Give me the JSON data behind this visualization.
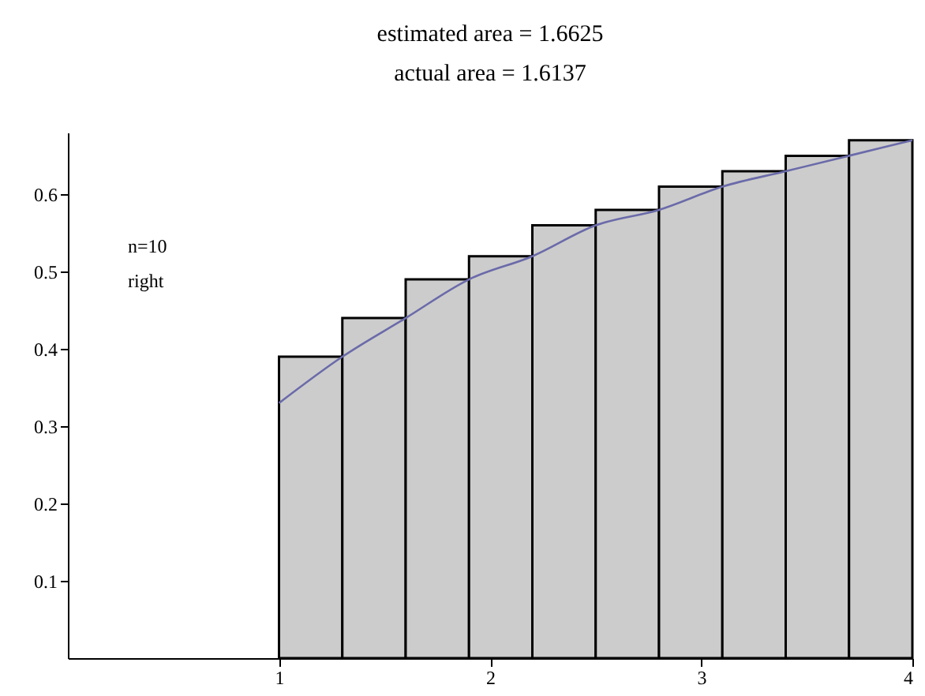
{
  "chart_data": {
    "type": "histogram",
    "title": "estimated area = 1.6625",
    "subtitle": "actual area = 1.6137",
    "bins": [
      1,
      1.3,
      1.6,
      1.9,
      2.2,
      2.5,
      2.8,
      3.1,
      3.4,
      3.7,
      4
    ],
    "values": [
      0.39,
      0.44,
      0.49,
      0.52,
      0.56,
      0.58,
      0.61,
      0.63,
      0.65,
      0.67
    ],
    "color": "#cccccc",
    "series": [
      {
        "type": "line",
        "color": "#6a6aaa",
        "x": [
          1,
          1.3,
          1.6,
          1.9,
          2.2,
          2.5,
          2.8,
          3.1,
          3.4,
          3.7,
          4
        ],
        "values": [
          0.33,
          0.39,
          0.44,
          0.49,
          0.52,
          0.56,
          0.58,
          0.61,
          0.63,
          0.65,
          0.67
        ]
      }
    ],
    "annotations": [
      "n=10",
      "right"
    ],
    "xlim": [
      0,
      4
    ],
    "xticks": [
      1,
      2,
      3,
      4
    ],
    "ylim": [
      0,
      0.68
    ],
    "yticks": [
      0.1,
      0.2,
      0.3,
      0.4,
      0.5,
      0.6
    ],
    "grid": false
  }
}
